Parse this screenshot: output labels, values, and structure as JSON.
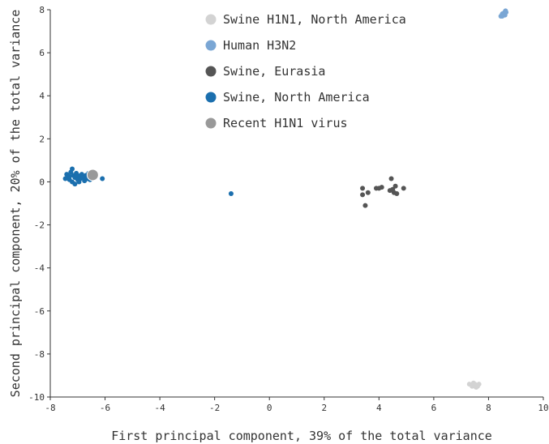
{
  "chart_data": {
    "type": "scatter",
    "title": "",
    "xlabel": "First principal component, 39% of the total variance",
    "ylabel": "Second principal component, 20% of the total variance",
    "xlim": [
      -8,
      10
    ],
    "ylim": [
      -10,
      8
    ],
    "xticks": [
      -8,
      -6,
      -4,
      -2,
      0,
      2,
      4,
      6,
      8,
      10
    ],
    "yticks": [
      -10,
      -8,
      -6,
      -4,
      -2,
      0,
      2,
      4,
      6,
      8
    ],
    "grid": false,
    "legend_position": "top",
    "series": [
      {
        "name": "Swine H1N1, North America",
        "color": "#d3d3d3",
        "points": [
          [
            7.4,
            -9.5
          ],
          [
            7.5,
            -9.4
          ],
          [
            7.6,
            -9.45
          ],
          [
            7.55,
            -9.55
          ],
          [
            7.45,
            -9.35
          ],
          [
            7.3,
            -9.4
          ],
          [
            7.65,
            -9.4
          ],
          [
            7.5,
            -9.5
          ],
          [
            7.6,
            -9.5
          ],
          [
            7.4,
            -9.45
          ]
        ]
      },
      {
        "name": "Human H3N2",
        "color": "#7aa6d4",
        "points": [
          [
            8.5,
            7.8
          ],
          [
            8.6,
            7.9
          ],
          [
            8.55,
            7.75
          ],
          [
            8.62,
            7.95
          ],
          [
            8.45,
            7.7
          ],
          [
            8.58,
            7.85
          ],
          [
            8.52,
            7.82
          ],
          [
            8.6,
            7.75
          ],
          [
            8.5,
            7.7
          ],
          [
            8.64,
            7.88
          ]
        ]
      },
      {
        "name": "Swine, Eurasia",
        "color": "#555555",
        "points": [
          [
            3.4,
            -0.3
          ],
          [
            3.4,
            -0.6
          ],
          [
            3.6,
            -0.5
          ],
          [
            3.5,
            -1.1
          ],
          [
            3.9,
            -0.3
          ],
          [
            4.0,
            -0.3
          ],
          [
            4.1,
            -0.25
          ],
          [
            4.4,
            -0.4
          ],
          [
            4.45,
            0.15
          ],
          [
            4.5,
            -0.35
          ],
          [
            4.55,
            -0.5
          ],
          [
            4.6,
            -0.2
          ],
          [
            4.65,
            -0.55
          ],
          [
            4.9,
            -0.3
          ],
          [
            4.5,
            -0.4
          ]
        ]
      },
      {
        "name": "Swine, North America",
        "color": "#1b6fae",
        "points": [
          [
            -7.4,
            0.35
          ],
          [
            -7.35,
            0.2
          ],
          [
            -7.3,
            0.1
          ],
          [
            -7.25,
            0.45
          ],
          [
            -7.2,
            0.6
          ],
          [
            -7.2,
            0.0
          ],
          [
            -7.15,
            0.3
          ],
          [
            -7.1,
            0.2
          ],
          [
            -7.1,
            -0.1
          ],
          [
            -7.05,
            0.4
          ],
          [
            -7.0,
            0.1
          ],
          [
            -7.0,
            0.3
          ],
          [
            -6.95,
            0.0
          ],
          [
            -6.9,
            0.25
          ],
          [
            -6.9,
            0.15
          ],
          [
            -6.85,
            0.35
          ],
          [
            -6.8,
            0.2
          ],
          [
            -6.75,
            0.05
          ],
          [
            -6.7,
            0.3
          ],
          [
            -6.65,
            0.15
          ],
          [
            -6.6,
            0.4
          ],
          [
            -6.55,
            0.1
          ],
          [
            -6.5,
            0.25
          ],
          [
            -7.3,
            0.25
          ],
          [
            -7.45,
            0.15
          ],
          [
            -6.1,
            0.15
          ],
          [
            -1.4,
            -0.55
          ]
        ]
      },
      {
        "name": "Recent H1N1 virus",
        "color": "#999999",
        "points": [
          [
            -6.45,
            0.32
          ]
        ]
      }
    ]
  }
}
